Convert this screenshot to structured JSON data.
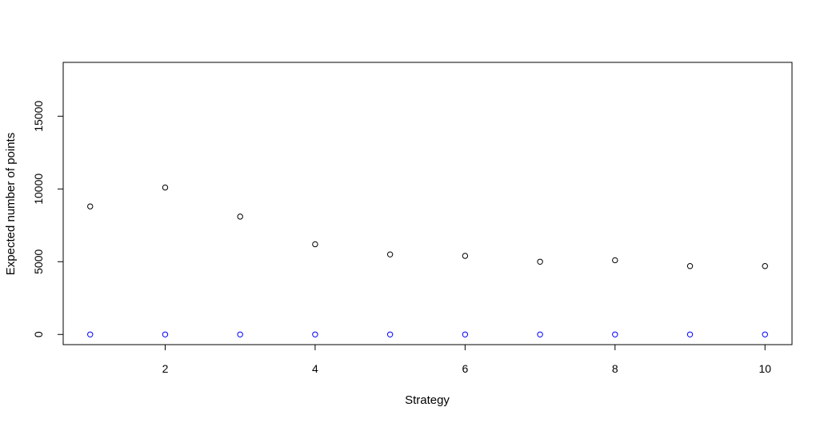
{
  "chart_data": {
    "type": "scatter",
    "title": "",
    "xlabel": "Strategy",
    "ylabel": "Expected number of points",
    "xlim": [
      0.64,
      10.36
    ],
    "ylim": [
      -700,
      18700
    ],
    "x_ticks": [
      2,
      4,
      6,
      8,
      10
    ],
    "y_ticks": [
      0,
      5000,
      10000,
      15000
    ],
    "grid": false,
    "legend": "none",
    "series": [
      {
        "color": "#000000",
        "marker": "open-circle",
        "points": [
          {
            "x": 1,
            "y": 8800
          },
          {
            "x": 2,
            "y": 10100
          },
          {
            "x": 3,
            "y": 8100
          },
          {
            "x": 4,
            "y": 6200
          },
          {
            "x": 5,
            "y": 5500
          },
          {
            "x": 6,
            "y": 5400
          },
          {
            "x": 7,
            "y": 5000
          },
          {
            "x": 8,
            "y": 5100
          },
          {
            "x": 9,
            "y": 4700
          },
          {
            "x": 10,
            "y": 4700
          }
        ]
      },
      {
        "color": "#0000ff",
        "marker": "open-circle",
        "points": [
          {
            "x": 1,
            "y": 0
          },
          {
            "x": 2,
            "y": 0
          },
          {
            "x": 3,
            "y": 0
          },
          {
            "x": 4,
            "y": 0
          },
          {
            "x": 5,
            "y": 0
          },
          {
            "x": 6,
            "y": 0
          },
          {
            "x": 7,
            "y": 0
          },
          {
            "x": 8,
            "y": 0
          },
          {
            "x": 9,
            "y": 0
          },
          {
            "x": 10,
            "y": 0
          }
        ]
      }
    ]
  }
}
